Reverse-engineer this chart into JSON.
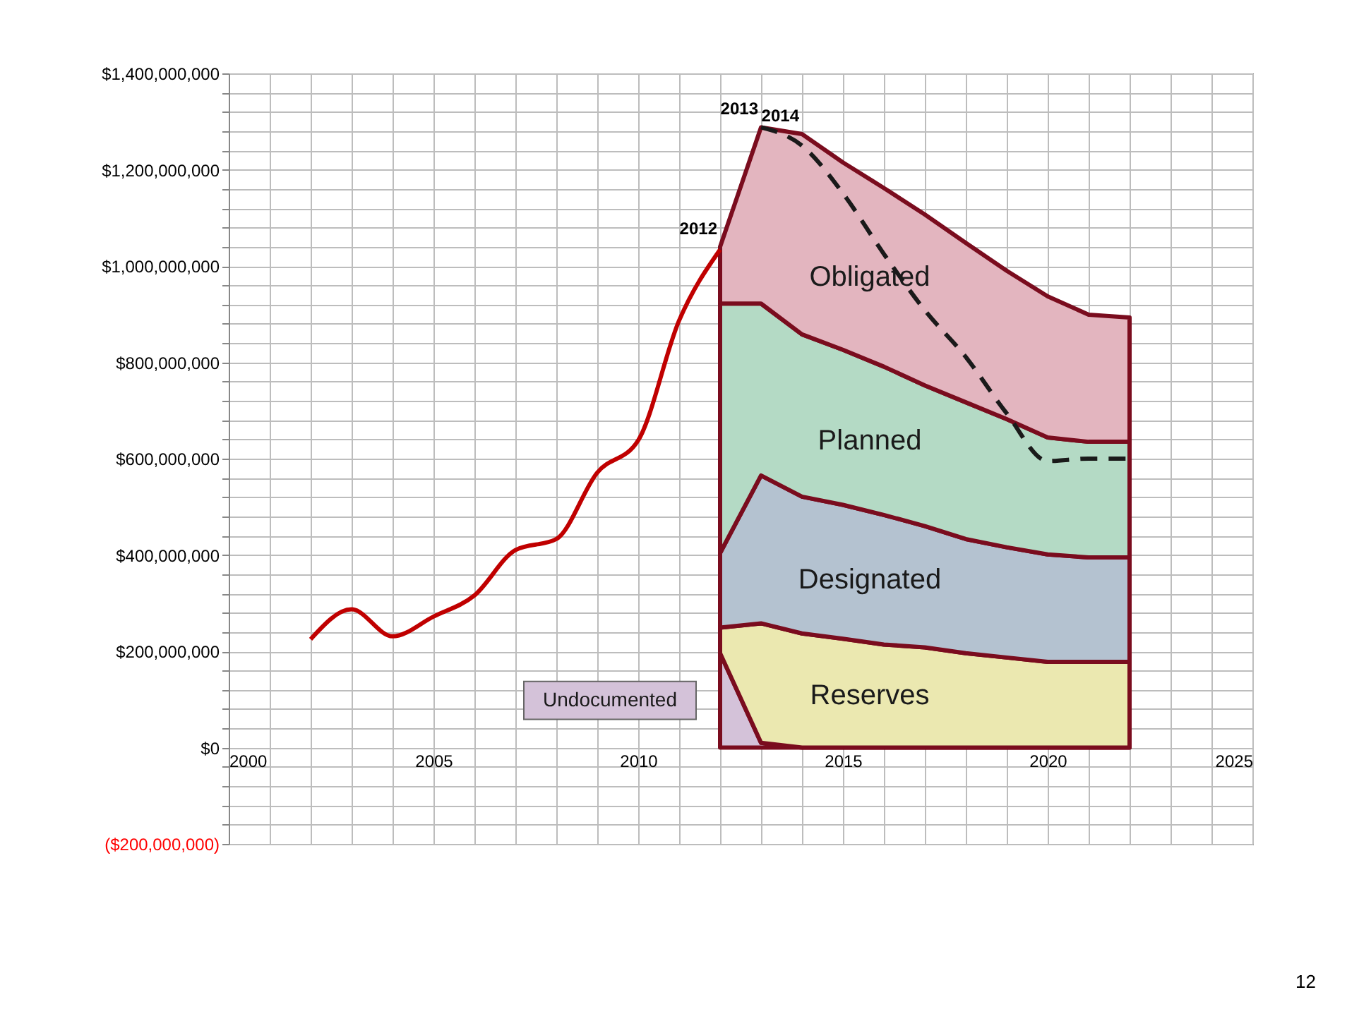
{
  "chart_data": {
    "type": "area",
    "stacked": true,
    "grid": true,
    "legend": false,
    "x": [
      2012,
      2013,
      2014,
      2015,
      2016,
      2017,
      2018,
      2019,
      2020,
      2021,
      2022
    ],
    "series": [
      {
        "name": "Undocumented",
        "color": "#d4c2d9",
        "values": [
          196000000,
          10000000,
          0,
          0,
          0,
          0,
          0,
          0,
          0,
          0,
          0
        ]
      },
      {
        "name": "Reserves",
        "color": "#ebe8b0",
        "values": [
          53000000,
          248000000,
          237000000,
          226000000,
          214000000,
          208000000,
          196000000,
          187000000,
          178000000,
          178000000,
          178000000
        ]
      },
      {
        "name": "Designated",
        "color": "#b4c2d0",
        "values": [
          155000000,
          307000000,
          284000000,
          278000000,
          269000000,
          252000000,
          237000000,
          229000000,
          223000000,
          217000000,
          217000000
        ]
      },
      {
        "name": "Planned",
        "color": "#b4dac5",
        "values": [
          518000000,
          357000000,
          337000000,
          322000000,
          308000000,
          292000000,
          284000000,
          266000000,
          243000000,
          240000000,
          240000000
        ]
      },
      {
        "name": "Obligated",
        "color": "#e3b5bf",
        "values": [
          118000000,
          366000000,
          416000000,
          389000000,
          371000000,
          355000000,
          331000000,
          308000000,
          293000000,
          264000000,
          258000000
        ]
      },
      {
        "type": "line",
        "color": "#c00000",
        "line_style": "solid",
        "x": [
          2002,
          2003,
          2004,
          2005,
          2006,
          2007,
          2008,
          2009,
          2010,
          2011,
          2012
        ],
        "values": [
          225000000,
          287000000,
          231000000,
          272000000,
          316000000,
          410000000,
          433000000,
          571000000,
          638000000,
          887000000,
          1034000000
        ]
      },
      {
        "type": "line",
        "color": "#1a1a1a",
        "line_style": "dashed",
        "x": [
          2013,
          2014,
          2015,
          2016,
          2017,
          2018,
          2019,
          2020,
          2021,
          2022
        ],
        "values": [
          1288000000,
          1250000000,
          1151000000,
          1025000000,
          908000000,
          811000000,
          694000000,
          595000000,
          600000000,
          600000000
        ]
      }
    ],
    "xlim": [
      2000,
      2025
    ],
    "xticks": [
      2000,
      {
        "value": 2001,
        "label": null
      },
      {
        "value": 2002,
        "label": null
      },
      {
        "value": 2003,
        "label": null
      },
      {
        "value": 2004,
        "label": null
      },
      2005,
      {
        "value": 2006,
        "label": null
      },
      {
        "value": 2007,
        "label": null
      },
      {
        "value": 2008,
        "label": null
      },
      {
        "value": 2009,
        "label": null
      },
      2010,
      {
        "value": 2011,
        "label": null
      },
      {
        "value": 2012,
        "label": null
      },
      {
        "value": 2013,
        "label": null
      },
      {
        "value": 2014,
        "label": null
      },
      2015,
      {
        "value": 2016,
        "label": null
      },
      {
        "value": 2017,
        "label": null
      },
      {
        "value": 2018,
        "label": null
      },
      {
        "value": 2019,
        "label": null
      },
      2020,
      {
        "value": 2021,
        "label": null
      },
      {
        "value": 2022,
        "label": null
      },
      {
        "value": 2023,
        "label": null
      },
      {
        "value": 2024,
        "label": null
      },
      2025
    ],
    "ylim": [
      -200000000,
      1400000000
    ],
    "yticks": [
      {
        "value": -200000000,
        "label": "($200,000,000)"
      },
      {
        "value": -160000000,
        "label": null
      },
      {
        "value": -120000000,
        "label": null
      },
      {
        "value": -80000000,
        "label": null
      },
      {
        "value": -40000000,
        "label": null
      },
      {
        "value": 0,
        "label": "$0"
      },
      {
        "value": 40000000,
        "label": null
      },
      {
        "value": 80000000,
        "label": null
      },
      {
        "value": 120000000,
        "label": null
      },
      {
        "value": 160000000,
        "label": null
      },
      {
        "value": 200000000,
        "label": "$200,000,000"
      },
      {
        "value": 240000000,
        "label": null
      },
      {
        "value": 280000000,
        "label": null
      },
      {
        "value": 320000000,
        "label": null
      },
      {
        "value": 360000000,
        "label": null
      },
      {
        "value": 400000000,
        "label": "$400,000,000"
      },
      {
        "value": 440000000,
        "label": null
      },
      {
        "value": 480000000,
        "label": null
      },
      {
        "value": 520000000,
        "label": null
      },
      {
        "value": 560000000,
        "label": null
      },
      {
        "value": 600000000,
        "label": "$600,000,000"
      },
      {
        "value": 640000000,
        "label": null
      },
      {
        "value": 680000000,
        "label": null
      },
      {
        "value": 720000000,
        "label": null
      },
      {
        "value": 760000000,
        "label": null
      },
      {
        "value": 800000000,
        "label": "$800,000,000"
      },
      {
        "value": 840000000,
        "label": null
      },
      {
        "value": 880000000,
        "label": null
      },
      {
        "value": 920000000,
        "label": null
      },
      {
        "value": 960000000,
        "label": null
      },
      {
        "value": 1000000000,
        "label": "$1,000,000,000"
      },
      {
        "value": 1040000000,
        "label": null
      },
      {
        "value": 1080000000,
        "label": null
      },
      {
        "value": 1120000000,
        "label": null
      },
      {
        "value": 1160000000,
        "label": null
      },
      {
        "value": 1200000000,
        "label": "$1,200,000,000"
      },
      {
        "value": 1240000000,
        "label": null
      },
      {
        "value": 1280000000,
        "label": null
      },
      {
        "value": 1320000000,
        "label": null
      },
      {
        "value": 1360000000,
        "label": null
      },
      {
        "value": 1400000000,
        "label": "$1,400,000,000"
      }
    ],
    "annotations": [
      {
        "text": "2012",
        "x": 2012,
        "y": 1040000000
      },
      {
        "text": "2013",
        "x": 2013,
        "y": 1288000000
      },
      {
        "text": "2014",
        "x": 2014,
        "y": 1274000000
      },
      "12"
    ]
  }
}
